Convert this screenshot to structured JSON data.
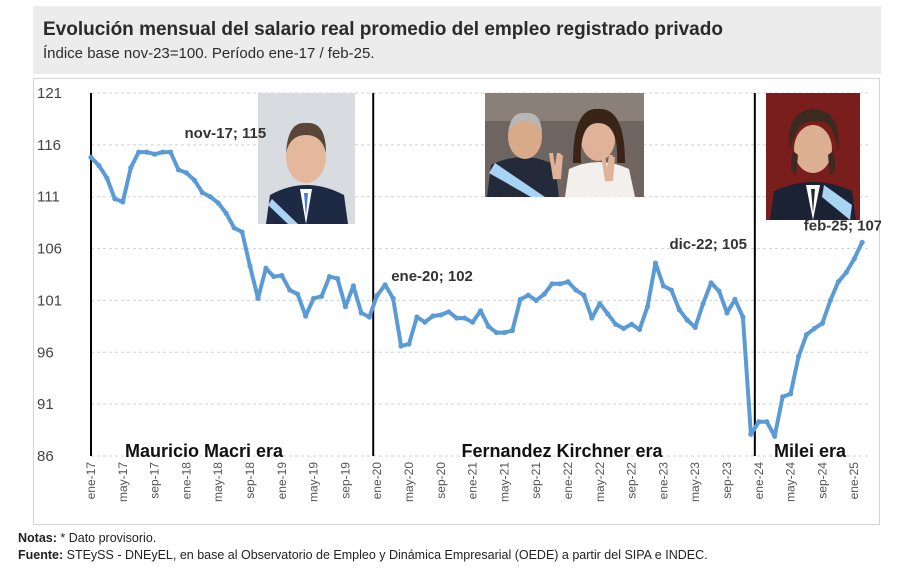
{
  "header": {
    "title": "Evolución mensual del salario real promedio del empleo registrado privado",
    "subtitle": "Índice base nov-23=100. Período ene-17 / feb-25."
  },
  "footer": {
    "notes_label": "Notas:",
    "notes_text": " * Dato provisorio.",
    "source_label": "Fuente:",
    "source_text": " STEySS - DNEyEL, en base al Observatorio de Empleo y Dinámica Empresarial (OEDE) a partir del SIPA e INDEC."
  },
  "portraits": [
    {
      "name": "macri-portrait",
      "bg": "#d8dbe0",
      "suit": "#1e2a44",
      "sash": "#a9d3f2"
    },
    {
      "name": "fernandez-kirchner-portrait",
      "bg": "#6e6460",
      "suit": "#232b3a",
      "sash": "#a9d3f2"
    },
    {
      "name": "milei-portrait",
      "bg": "#7a1d1d",
      "suit": "#1b2233",
      "sash": "#a9d3f2"
    }
  ],
  "chart_data": {
    "type": "line",
    "color": "#5b9bd5",
    "ylim": [
      86,
      121
    ],
    "yticks": [
      86,
      91,
      96,
      101,
      106,
      111,
      116,
      121
    ],
    "x_tick_labels": [
      "ene-17",
      "may-17",
      "sep-17",
      "ene-18",
      "may-18",
      "sep-18",
      "ene-19",
      "may-19",
      "sep-19",
      "ene-20",
      "may-20",
      "sep-20",
      "ene-21",
      "may-21",
      "sep-21",
      "ene-22",
      "may-22",
      "sep-22",
      "ene-23",
      "may-23",
      "sep-23",
      "ene-24",
      "may-24",
      "sep-24",
      "ene-25"
    ],
    "x_tick_index": [
      0,
      4,
      8,
      12,
      16,
      20,
      24,
      28,
      32,
      36,
      40,
      44,
      48,
      52,
      56,
      60,
      64,
      68,
      72,
      76,
      80,
      84,
      88,
      92,
      96
    ],
    "values": [
      114.8,
      114.0,
      112.8,
      110.8,
      110.5,
      113.8,
      115.3,
      115.3,
      115.1,
      115.3,
      115.3,
      113.6,
      113.3,
      112.6,
      111.4,
      111.0,
      110.4,
      109.4,
      108.0,
      107.6,
      104.3,
      101.2,
      104.1,
      103.3,
      103.4,
      102.0,
      101.6,
      99.5,
      101.2,
      101.4,
      103.3,
      103.1,
      100.4,
      102.4,
      99.8,
      99.4,
      101.5,
      102.5,
      101.2,
      96.6,
      96.8,
      99.4,
      98.9,
      99.5,
      99.6,
      99.9,
      99.3,
      99.3,
      98.9,
      100.0,
      98.5,
      97.9,
      97.9,
      98.1,
      101.1,
      101.5,
      101.0,
      101.6,
      102.6,
      102.6,
      102.8,
      102.0,
      101.5,
      99.3,
      100.7,
      99.7,
      98.7,
      98.3,
      98.7,
      98.2,
      100.4,
      104.6,
      102.4,
      102.0,
      100.1,
      99.1,
      98.4,
      100.7,
      102.7,
      101.9,
      99.8,
      101.1,
      99.4,
      88.1,
      89.3,
      89.3,
      87.9,
      91.7,
      92.0,
      95.6,
      97.7,
      98.3,
      98.8,
      101.0,
      102.8,
      103.7,
      105.0,
      106.6
    ],
    "era_labels": [
      "Mauricio Macri era",
      "Fernandez Kirchner era",
      "Milei era"
    ],
    "era_boundaries_index": [
      0,
      35.5,
      83.5
    ],
    "annotations": [
      {
        "text": "nov-17; 115",
        "index": 10
      },
      {
        "text": "ene-20; 102",
        "index": 36
      },
      {
        "text": "dic-22; 105",
        "index": 71
      },
      {
        "text": "feb-25; 107",
        "index": 97
      }
    ]
  }
}
